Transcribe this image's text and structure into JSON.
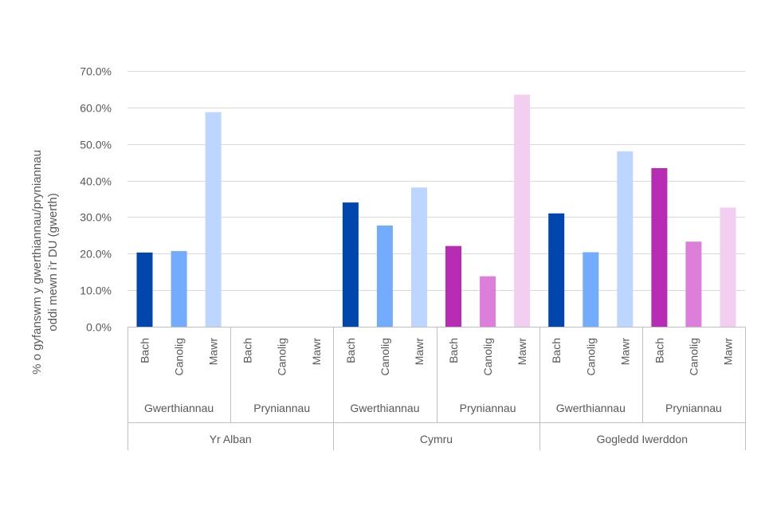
{
  "chart_data": {
    "type": "bar",
    "title": "",
    "ylabel_lines": [
      "% o gyfanswm y gwerthiannau/pryniannau",
      "oddi mewn i’r DU (gwerth)"
    ],
    "ylim": [
      0,
      70
    ],
    "ytick_values": [
      0,
      10,
      20,
      30,
      40,
      50,
      60,
      70
    ],
    "ytick_labels": [
      "0.0%",
      "10.0%",
      "20.0%",
      "30.0%",
      "40.0%",
      "50.0%",
      "60.0%",
      "70.0%"
    ],
    "grid": true,
    "regions": [
      {
        "name": "Yr Alban",
        "groups": [
          {
            "name": "Gwerthiannau",
            "kind": "sales",
            "bars": [
              {
                "label": "Bach",
                "value": 20.3
              },
              {
                "label": "Canolig",
                "value": 20.7
              },
              {
                "label": "Mawr",
                "value": 58.7
              }
            ]
          },
          {
            "name": "Pryniannau",
            "kind": "purchases",
            "bars": [
              {
                "label": "Bach",
                "value": 0
              },
              {
                "label": "Canolig",
                "value": 0
              },
              {
                "label": "Mawr",
                "value": 0
              }
            ]
          }
        ]
      },
      {
        "name": "Cymru",
        "groups": [
          {
            "name": "Gwerthiannau",
            "kind": "sales",
            "bars": [
              {
                "label": "Bach",
                "value": 34.0
              },
              {
                "label": "Canolig",
                "value": 27.7
              },
              {
                "label": "Mawr",
                "value": 38.1
              }
            ]
          },
          {
            "name": "Pryniannau",
            "kind": "purchases",
            "bars": [
              {
                "label": "Bach",
                "value": 22.1
              },
              {
                "label": "Canolig",
                "value": 13.8
              },
              {
                "label": "Mawr",
                "value": 63.5
              }
            ]
          }
        ]
      },
      {
        "name": "Gogledd Iwerddon",
        "groups": [
          {
            "name": "Gwerthiannau",
            "kind": "sales",
            "bars": [
              {
                "label": "Bach",
                "value": 31.0
              },
              {
                "label": "Canolig",
                "value": 20.4
              },
              {
                "label": "Mawr",
                "value": 48.0
              }
            ]
          },
          {
            "name": "Pryniannau",
            "kind": "purchases",
            "bars": [
              {
                "label": "Bach",
                "value": 43.4
              },
              {
                "label": "Canolig",
                "value": 23.3
              },
              {
                "label": "Mawr",
                "value": 32.6
              }
            ]
          }
        ]
      }
    ],
    "colors": {
      "sales": [
        "#0046AD",
        "#73ABFF",
        "#BCD6FF"
      ],
      "purchases": [
        "#B82CB5",
        "#DC7EDA",
        "#F2CFF1"
      ],
      "grid": "#D9D9D9",
      "axis": "#BFBFBF",
      "text": "#595959"
    }
  }
}
